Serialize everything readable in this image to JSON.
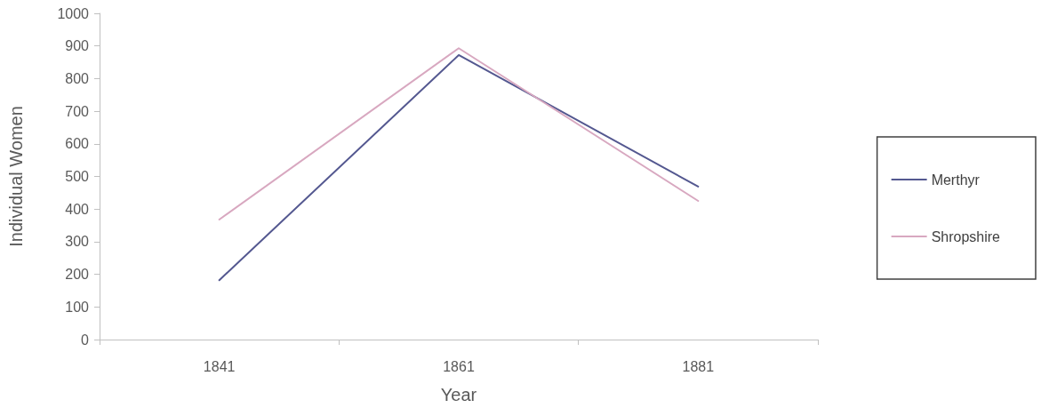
{
  "chart_data": {
    "type": "line",
    "xlabel": "Year",
    "ylabel": "Individual Women",
    "categories": [
      "1841",
      "1861",
      "1881"
    ],
    "series": [
      {
        "name": "Merthyr",
        "color": "#545890",
        "values": [
          182,
          872,
          469
        ]
      },
      {
        "name": "Shropshire",
        "color": "#d8a8c0",
        "values": [
          368,
          893,
          425
        ]
      }
    ],
    "ylim": [
      0,
      1000
    ],
    "yticks": [
      0,
      100,
      200,
      300,
      400,
      500,
      600,
      700,
      800,
      900,
      1000
    ],
    "grid": false,
    "legend": "right",
    "marker": "none",
    "line_style": "solid"
  }
}
